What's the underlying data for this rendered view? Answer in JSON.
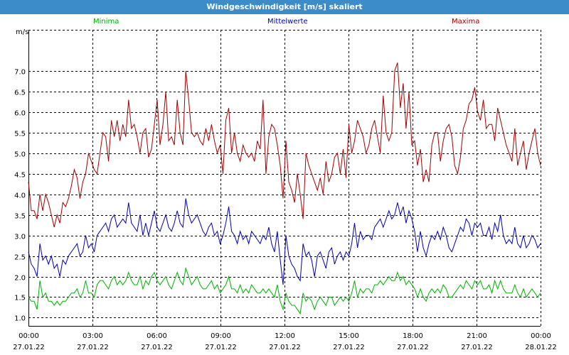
{
  "window": {
    "title": "Windgeschwindigkeit [m/s] skaliert"
  },
  "colors": {
    "titlebar": "#3c8cca",
    "minima": "#00b000",
    "mittelwerte": "#0000b0",
    "maxima": "#a00000",
    "grid": "#000000"
  },
  "legend": {
    "minima": "Minima",
    "mittelwerte": "Mittelwerte",
    "maxima": "Maxima"
  },
  "chart_data": {
    "type": "line",
    "ylabel": "m/s",
    "ylim": [
      0.8,
      8.0
    ],
    "y_ticks": [
      "1.0",
      "1.5",
      "2.0",
      "2.5",
      "3.0",
      "3.5",
      "4.0",
      "4.5",
      "5.0",
      "5.5",
      "6.0",
      "6.5",
      "7.0"
    ],
    "x_ticks": [
      {
        "time": "00:00",
        "date": "27.01.22"
      },
      {
        "time": "03:00",
        "date": "27.01.22"
      },
      {
        "time": "06:00",
        "date": "27.01.22"
      },
      {
        "time": "09:00",
        "date": "27.01.22"
      },
      {
        "time": "12:00",
        "date": "27.01.22"
      },
      {
        "time": "15:00",
        "date": "27.01.22"
      },
      {
        "time": "18:00",
        "date": "27.01.22"
      },
      {
        "time": "21:00",
        "date": "27.01.22"
      },
      {
        "time": "00:00",
        "date": "28.01.22"
      }
    ],
    "x_start_hour": 0,
    "x_end_hour": 24,
    "grid": true,
    "series": [
      {
        "name": "Maxima",
        "key": "maxima",
        "values": [
          4.3,
          3.6,
          3.6,
          3.4,
          4.0,
          3.6,
          4.0,
          3.8,
          3.5,
          3.2,
          3.5,
          3.3,
          3.8,
          3.7,
          3.9,
          4.2,
          4.6,
          4.4,
          3.9,
          4.3,
          4.5,
          5.0,
          4.8,
          4.6,
          4.5,
          5.0,
          5.5,
          5.4,
          4.8,
          5.8,
          5.4,
          5.8,
          5.3,
          5.7,
          5.4,
          6.3,
          5.6,
          5.7,
          5.4,
          5.0,
          5.5,
          5.6,
          4.9,
          5.1,
          5.7,
          6.3,
          5.2,
          5.7,
          6.5,
          5.3,
          5.4,
          5.2,
          6.3,
          5.5,
          5.2,
          7.0,
          6.3,
          5.5,
          5.4,
          5.5,
          5.3,
          5.2,
          5.6,
          5.3,
          5.7,
          5.3,
          5.0,
          5.2,
          4.5,
          5.8,
          6.1,
          5.0,
          5.5,
          5.0,
          4.8,
          5.2,
          5.0,
          4.9,
          5.0,
          4.8,
          5.3,
          5.1,
          6.3,
          4.5,
          5.4,
          5.7,
          5.6,
          5.2,
          4.7,
          3.9,
          5.3,
          4.3,
          4.1,
          3.8,
          4.5,
          4.0,
          3.4,
          5.0,
          4.7,
          4.5,
          4.3,
          4.1,
          4.4,
          4.0,
          4.8,
          4.3,
          4.5,
          4.9,
          5.0,
          4.5,
          5.1,
          4.4,
          5.7,
          5.0,
          5.3,
          5.8,
          5.6,
          5.4,
          5.0,
          5.2,
          5.6,
          5.8,
          5.4,
          5.0,
          6.4,
          5.5,
          5.3,
          5.5,
          7.0,
          7.2,
          6.1,
          6.7,
          5.6,
          6.5,
          5.2,
          5.3,
          4.7,
          5.1,
          4.3,
          4.6,
          4.3,
          5.2,
          5.5,
          5.5,
          4.8,
          5.3,
          5.6,
          5.7,
          5.4,
          4.7,
          4.5,
          4.9,
          5.6,
          5.8,
          6.2,
          6.3,
          6.6,
          6.0,
          5.8,
          6.3,
          5.6,
          5.7,
          5.7,
          5.3,
          6.1,
          5.8,
          5.5,
          5.2,
          5.0,
          4.8,
          5.6,
          4.7,
          5.0,
          5.3,
          4.6,
          5.0,
          5.3,
          5.6,
          5.0,
          4.7
        ]
      },
      {
        "name": "Mittelwerte",
        "key": "mittelwerte",
        "values": [
          2.6,
          2.3,
          2.2,
          2.0,
          2.8,
          2.4,
          2.5,
          2.3,
          2.5,
          2.2,
          2.3,
          2.0,
          2.4,
          2.3,
          2.5,
          2.6,
          2.7,
          2.8,
          2.5,
          2.6,
          3.0,
          2.7,
          2.8,
          2.6,
          3.0,
          3.1,
          3.2,
          3.3,
          3.1,
          3.4,
          3.5,
          3.2,
          3.3,
          3.4,
          3.3,
          3.8,
          3.3,
          3.2,
          3.1,
          3.5,
          3.0,
          3.3,
          3.0,
          3.3,
          3.6,
          3.2,
          3.1,
          3.3,
          3.5,
          3.2,
          3.1,
          3.3,
          3.6,
          3.3,
          3.2,
          3.9,
          3.5,
          3.3,
          3.4,
          3.5,
          3.3,
          3.1,
          3.0,
          3.2,
          3.3,
          3.0,
          3.1,
          2.8,
          3.0,
          3.3,
          3.7,
          3.1,
          3.0,
          2.8,
          3.1,
          2.9,
          3.0,
          2.8,
          3.1,
          3.0,
          2.9,
          2.8,
          3.0,
          2.9,
          3.2,
          2.8,
          2.6,
          3.1,
          2.4,
          1.8,
          3.0,
          2.5,
          2.3,
          2.2,
          2.0,
          1.9,
          2.8,
          2.5,
          2.6,
          2.4,
          2.0,
          2.5,
          2.6,
          2.4,
          2.2,
          2.6,
          2.7,
          2.3,
          2.5,
          2.6,
          2.4,
          2.6,
          2.5,
          2.8,
          3.3,
          2.7,
          3.1,
          2.9,
          3.0,
          3.0,
          2.9,
          3.2,
          3.3,
          3.4,
          3.2,
          3.4,
          3.6,
          3.4,
          3.5,
          3.8,
          3.5,
          3.7,
          3.3,
          3.6,
          3.4,
          3.1,
          2.6,
          3.1,
          2.7,
          2.5,
          2.8,
          3.0,
          2.9,
          3.1,
          2.9,
          3.2,
          3.0,
          2.7,
          2.6,
          2.8,
          3.0,
          3.2,
          3.1,
          3.4,
          3.3,
          3.0,
          3.3,
          3.2,
          3.3,
          3.0,
          3.0,
          3.2,
          2.9,
          3.3,
          3.1,
          3.5,
          3.0,
          2.8,
          2.9,
          2.8,
          3.2,
          2.8,
          2.7,
          3.0,
          2.7,
          2.8,
          3.0,
          2.9,
          2.7,
          2.8
        ]
      },
      {
        "name": "Minima",
        "key": "minima",
        "values": [
          1.5,
          1.4,
          1.4,
          1.2,
          1.9,
          1.5,
          1.6,
          1.4,
          1.4,
          1.3,
          1.4,
          1.3,
          1.4,
          1.4,
          1.5,
          1.6,
          1.6,
          1.7,
          1.5,
          1.6,
          1.9,
          1.6,
          1.6,
          1.5,
          1.8,
          1.9,
          1.9,
          1.8,
          1.7,
          1.9,
          2.0,
          1.8,
          1.9,
          1.8,
          1.9,
          2.1,
          1.9,
          1.8,
          1.8,
          2.0,
          1.7,
          1.9,
          1.8,
          2.0,
          2.1,
          1.9,
          1.8,
          1.9,
          2.0,
          1.8,
          1.7,
          1.9,
          2.1,
          1.9,
          1.8,
          2.2,
          2.0,
          1.8,
          1.9,
          2.0,
          1.8,
          1.7,
          1.7,
          1.8,
          1.9,
          1.7,
          1.8,
          1.6,
          1.7,
          1.8,
          2.0,
          1.7,
          1.7,
          1.6,
          1.8,
          1.6,
          1.7,
          1.6,
          1.8,
          1.7,
          1.6,
          1.6,
          1.7,
          1.6,
          1.7,
          1.6,
          1.5,
          1.8,
          1.4,
          1.2,
          1.6,
          1.4,
          1.3,
          1.3,
          1.2,
          1.1,
          1.6,
          1.4,
          1.5,
          1.4,
          1.2,
          1.4,
          1.5,
          1.4,
          1.3,
          1.5,
          1.5,
          1.3,
          1.4,
          1.5,
          1.4,
          1.5,
          1.4,
          1.6,
          1.9,
          1.5,
          1.7,
          1.6,
          1.7,
          1.7,
          1.6,
          1.8,
          1.8,
          1.9,
          1.8,
          1.9,
          2.0,
          1.9,
          1.9,
          2.1,
          1.9,
          2.0,
          1.8,
          1.9,
          1.8,
          1.7,
          1.5,
          1.7,
          1.5,
          1.4,
          1.6,
          1.7,
          1.6,
          1.7,
          1.6,
          1.8,
          1.7,
          1.5,
          1.5,
          1.6,
          1.7,
          1.8,
          1.7,
          1.9,
          1.8,
          1.7,
          1.9,
          1.8,
          1.9,
          1.7,
          1.7,
          1.8,
          1.6,
          1.9,
          1.7,
          1.9,
          1.7,
          1.6,
          1.6,
          1.6,
          1.8,
          1.6,
          1.5,
          1.7,
          1.5,
          1.6,
          1.7,
          1.6,
          1.5,
          1.6
        ]
      }
    ]
  }
}
